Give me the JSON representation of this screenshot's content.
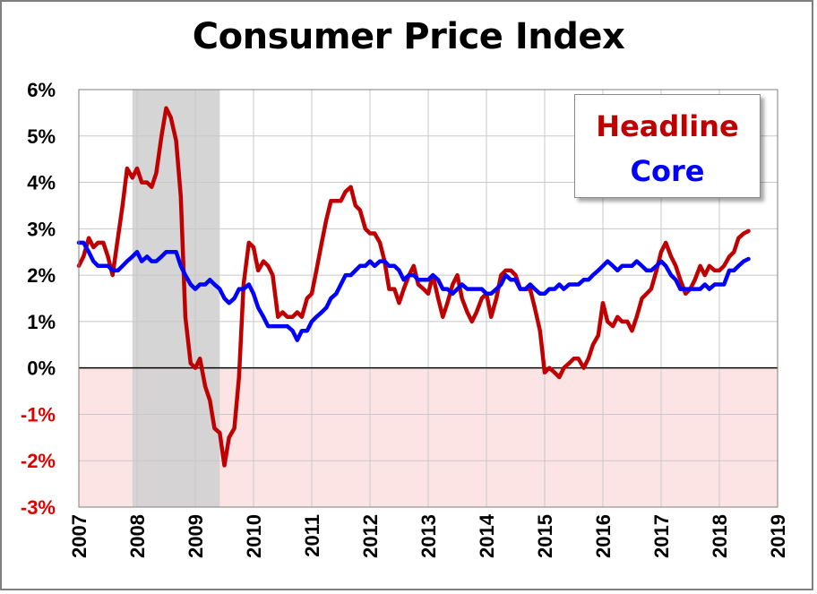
{
  "chart_data": {
    "type": "line",
    "title": "Consumer Price Index",
    "xlabel": "",
    "ylabel": "",
    "xlim": [
      2007,
      2019
    ],
    "ylim": [
      -3,
      6
    ],
    "x_ticks": [
      "2007",
      "2008",
      "2009",
      "2010",
      "2011",
      "2012",
      "2013",
      "2014",
      "2015",
      "2016",
      "2017",
      "2018",
      "2019"
    ],
    "y_ticks": [
      {
        "value": 6,
        "label": "6%"
      },
      {
        "value": 5,
        "label": "5%"
      },
      {
        "value": 4,
        "label": "4%"
      },
      {
        "value": 3,
        "label": "3%"
      },
      {
        "value": 2,
        "label": "2%"
      },
      {
        "value": 1,
        "label": "1%"
      },
      {
        "value": 0,
        "label": "0%"
      },
      {
        "value": -1,
        "label": "-1%"
      },
      {
        "value": -2,
        "label": "-2%"
      },
      {
        "value": -3,
        "label": "-3%"
      }
    ],
    "grid": true,
    "legend_position": "top-right",
    "recession": {
      "start": 2007.92,
      "end": 2009.42
    },
    "colors": {
      "headline": "#c00000",
      "core": "#0000ff",
      "recession": "#d0d0d0",
      "negative_zone": "#fde4e4",
      "negative_tick": "#e00000",
      "positive_tick": "#000000"
    },
    "series": [
      {
        "name": "Headline",
        "color": "#c00000",
        "points": [
          [
            2007.0,
            2.2
          ],
          [
            2007.08,
            2.4
          ],
          [
            2007.17,
            2.8
          ],
          [
            2007.25,
            2.6
          ],
          [
            2007.33,
            2.7
          ],
          [
            2007.42,
            2.7
          ],
          [
            2007.5,
            2.4
          ],
          [
            2007.58,
            2.0
          ],
          [
            2007.67,
            2.8
          ],
          [
            2007.75,
            3.5
          ],
          [
            2007.83,
            4.3
          ],
          [
            2007.92,
            4.1
          ],
          [
            2008.0,
            4.3
          ],
          [
            2008.08,
            4.0
          ],
          [
            2008.17,
            4.0
          ],
          [
            2008.25,
            3.9
          ],
          [
            2008.33,
            4.2
          ],
          [
            2008.42,
            5.0
          ],
          [
            2008.5,
            5.6
          ],
          [
            2008.58,
            5.4
          ],
          [
            2008.67,
            4.9
          ],
          [
            2008.75,
            3.7
          ],
          [
            2008.83,
            1.1
          ],
          [
            2008.92,
            0.1
          ],
          [
            2009.0,
            0.0
          ],
          [
            2009.08,
            0.2
          ],
          [
            2009.17,
            -0.4
          ],
          [
            2009.25,
            -0.7
          ],
          [
            2009.33,
            -1.3
          ],
          [
            2009.42,
            -1.4
          ],
          [
            2009.5,
            -2.1
          ],
          [
            2009.58,
            -1.5
          ],
          [
            2009.67,
            -1.3
          ],
          [
            2009.75,
            -0.2
          ],
          [
            2009.83,
            1.8
          ],
          [
            2009.92,
            2.7
          ],
          [
            2010.0,
            2.6
          ],
          [
            2010.08,
            2.1
          ],
          [
            2010.17,
            2.3
          ],
          [
            2010.25,
            2.2
          ],
          [
            2010.33,
            2.0
          ],
          [
            2010.42,
            1.1
          ],
          [
            2010.5,
            1.2
          ],
          [
            2010.58,
            1.1
          ],
          [
            2010.67,
            1.1
          ],
          [
            2010.75,
            1.2
          ],
          [
            2010.83,
            1.1
          ],
          [
            2010.92,
            1.5
          ],
          [
            2011.0,
            1.6
          ],
          [
            2011.08,
            2.1
          ],
          [
            2011.17,
            2.7
          ],
          [
            2011.25,
            3.2
          ],
          [
            2011.33,
            3.6
          ],
          [
            2011.42,
            3.6
          ],
          [
            2011.5,
            3.6
          ],
          [
            2011.58,
            3.8
          ],
          [
            2011.67,
            3.9
          ],
          [
            2011.75,
            3.5
          ],
          [
            2011.83,
            3.4
          ],
          [
            2011.92,
            3.0
          ],
          [
            2012.0,
            2.9
          ],
          [
            2012.08,
            2.9
          ],
          [
            2012.17,
            2.7
          ],
          [
            2012.25,
            2.3
          ],
          [
            2012.33,
            1.7
          ],
          [
            2012.42,
            1.7
          ],
          [
            2012.5,
            1.4
          ],
          [
            2012.58,
            1.7
          ],
          [
            2012.67,
            2.0
          ],
          [
            2012.75,
            2.2
          ],
          [
            2012.83,
            1.8
          ],
          [
            2012.92,
            1.7
          ],
          [
            2013.0,
            1.6
          ],
          [
            2013.08,
            2.0
          ],
          [
            2013.17,
            1.5
          ],
          [
            2013.25,
            1.1
          ],
          [
            2013.33,
            1.4
          ],
          [
            2013.42,
            1.8
          ],
          [
            2013.5,
            2.0
          ],
          [
            2013.58,
            1.5
          ],
          [
            2013.67,
            1.2
          ],
          [
            2013.75,
            1.0
          ],
          [
            2013.83,
            1.2
          ],
          [
            2013.92,
            1.5
          ],
          [
            2014.0,
            1.6
          ],
          [
            2014.08,
            1.1
          ],
          [
            2014.17,
            1.5
          ],
          [
            2014.25,
            2.0
          ],
          [
            2014.33,
            2.1
          ],
          [
            2014.42,
            2.1
          ],
          [
            2014.5,
            2.0
          ],
          [
            2014.58,
            1.7
          ],
          [
            2014.67,
            1.7
          ],
          [
            2014.75,
            1.7
          ],
          [
            2014.83,
            1.3
          ],
          [
            2014.92,
            0.8
          ],
          [
            2015.0,
            -0.1
          ],
          [
            2015.08,
            0.0
          ],
          [
            2015.17,
            -0.1
          ],
          [
            2015.25,
            -0.2
          ],
          [
            2015.33,
            0.0
          ],
          [
            2015.42,
            0.1
          ],
          [
            2015.5,
            0.2
          ],
          [
            2015.58,
            0.2
          ],
          [
            2015.67,
            0.0
          ],
          [
            2015.75,
            0.2
          ],
          [
            2015.83,
            0.5
          ],
          [
            2015.92,
            0.7
          ],
          [
            2016.0,
            1.4
          ],
          [
            2016.08,
            1.0
          ],
          [
            2016.17,
            0.9
          ],
          [
            2016.25,
            1.1
          ],
          [
            2016.33,
            1.0
          ],
          [
            2016.42,
            1.0
          ],
          [
            2016.5,
            0.8
          ],
          [
            2016.58,
            1.1
          ],
          [
            2016.67,
            1.5
          ],
          [
            2016.75,
            1.6
          ],
          [
            2016.83,
            1.7
          ],
          [
            2016.92,
            2.1
          ],
          [
            2017.0,
            2.5
          ],
          [
            2017.08,
            2.7
          ],
          [
            2017.17,
            2.4
          ],
          [
            2017.25,
            2.2
          ],
          [
            2017.33,
            1.9
          ],
          [
            2017.42,
            1.6
          ],
          [
            2017.5,
            1.7
          ],
          [
            2017.58,
            1.9
          ],
          [
            2017.67,
            2.2
          ],
          [
            2017.75,
            2.0
          ],
          [
            2017.83,
            2.2
          ],
          [
            2017.92,
            2.1
          ],
          [
            2018.0,
            2.1
          ],
          [
            2018.08,
            2.2
          ],
          [
            2018.17,
            2.4
          ],
          [
            2018.25,
            2.5
          ],
          [
            2018.33,
            2.8
          ],
          [
            2018.42,
            2.9
          ],
          [
            2018.5,
            2.95
          ]
        ]
      },
      {
        "name": "Core",
        "color": "#0000ff",
        "points": [
          [
            2007.0,
            2.7
          ],
          [
            2007.08,
            2.7
          ],
          [
            2007.17,
            2.5
          ],
          [
            2007.25,
            2.3
          ],
          [
            2007.33,
            2.2
          ],
          [
            2007.42,
            2.2
          ],
          [
            2007.5,
            2.2
          ],
          [
            2007.58,
            2.1
          ],
          [
            2007.67,
            2.1
          ],
          [
            2007.75,
            2.2
          ],
          [
            2007.83,
            2.3
          ],
          [
            2007.92,
            2.4
          ],
          [
            2008.0,
            2.5
          ],
          [
            2008.08,
            2.3
          ],
          [
            2008.17,
            2.4
          ],
          [
            2008.25,
            2.3
          ],
          [
            2008.33,
            2.3
          ],
          [
            2008.42,
            2.4
          ],
          [
            2008.5,
            2.5
          ],
          [
            2008.58,
            2.5
          ],
          [
            2008.67,
            2.5
          ],
          [
            2008.75,
            2.2
          ],
          [
            2008.83,
            2.0
          ],
          [
            2008.92,
            1.8
          ],
          [
            2009.0,
            1.7
          ],
          [
            2009.08,
            1.8
          ],
          [
            2009.17,
            1.8
          ],
          [
            2009.25,
            1.9
          ],
          [
            2009.33,
            1.8
          ],
          [
            2009.42,
            1.7
          ],
          [
            2009.5,
            1.5
          ],
          [
            2009.58,
            1.4
          ],
          [
            2009.67,
            1.5
          ],
          [
            2009.75,
            1.7
          ],
          [
            2009.83,
            1.7
          ],
          [
            2009.92,
            1.8
          ],
          [
            2010.0,
            1.6
          ],
          [
            2010.08,
            1.3
          ],
          [
            2010.17,
            1.1
          ],
          [
            2010.25,
            0.9
          ],
          [
            2010.33,
            0.9
          ],
          [
            2010.42,
            0.9
          ],
          [
            2010.5,
            0.9
          ],
          [
            2010.58,
            0.9
          ],
          [
            2010.67,
            0.8
          ],
          [
            2010.75,
            0.6
          ],
          [
            2010.83,
            0.8
          ],
          [
            2010.92,
            0.8
          ],
          [
            2011.0,
            1.0
          ],
          [
            2011.08,
            1.1
          ],
          [
            2011.17,
            1.2
          ],
          [
            2011.25,
            1.3
          ],
          [
            2011.33,
            1.5
          ],
          [
            2011.42,
            1.6
          ],
          [
            2011.5,
            1.8
          ],
          [
            2011.58,
            2.0
          ],
          [
            2011.67,
            2.0
          ],
          [
            2011.75,
            2.1
          ],
          [
            2011.83,
            2.2
          ],
          [
            2011.92,
            2.2
          ],
          [
            2012.0,
            2.3
          ],
          [
            2012.08,
            2.2
          ],
          [
            2012.17,
            2.3
          ],
          [
            2012.25,
            2.3
          ],
          [
            2012.33,
            2.2
          ],
          [
            2012.42,
            2.2
          ],
          [
            2012.5,
            2.1
          ],
          [
            2012.58,
            1.9
          ],
          [
            2012.67,
            2.0
          ],
          [
            2012.75,
            2.0
          ],
          [
            2012.83,
            1.9
          ],
          [
            2012.92,
            1.9
          ],
          [
            2013.0,
            1.9
          ],
          [
            2013.08,
            2.0
          ],
          [
            2013.17,
            1.9
          ],
          [
            2013.25,
            1.7
          ],
          [
            2013.33,
            1.7
          ],
          [
            2013.42,
            1.6
          ],
          [
            2013.5,
            1.7
          ],
          [
            2013.58,
            1.8
          ],
          [
            2013.67,
            1.7
          ],
          [
            2013.75,
            1.7
          ],
          [
            2013.83,
            1.7
          ],
          [
            2013.92,
            1.7
          ],
          [
            2014.0,
            1.6
          ],
          [
            2014.08,
            1.6
          ],
          [
            2014.17,
            1.7
          ],
          [
            2014.25,
            1.8
          ],
          [
            2014.33,
            2.0
          ],
          [
            2014.42,
            1.9
          ],
          [
            2014.5,
            1.9
          ],
          [
            2014.58,
            1.7
          ],
          [
            2014.67,
            1.7
          ],
          [
            2014.75,
            1.8
          ],
          [
            2014.83,
            1.7
          ],
          [
            2014.92,
            1.6
          ],
          [
            2015.0,
            1.6
          ],
          [
            2015.08,
            1.7
          ],
          [
            2015.17,
            1.7
          ],
          [
            2015.25,
            1.8
          ],
          [
            2015.33,
            1.7
          ],
          [
            2015.42,
            1.8
          ],
          [
            2015.5,
            1.8
          ],
          [
            2015.58,
            1.8
          ],
          [
            2015.67,
            1.9
          ],
          [
            2015.75,
            1.9
          ],
          [
            2015.83,
            2.0
          ],
          [
            2015.92,
            2.1
          ],
          [
            2016.0,
            2.2
          ],
          [
            2016.08,
            2.3
          ],
          [
            2016.17,
            2.2
          ],
          [
            2016.25,
            2.1
          ],
          [
            2016.33,
            2.2
          ],
          [
            2016.42,
            2.2
          ],
          [
            2016.5,
            2.2
          ],
          [
            2016.58,
            2.3
          ],
          [
            2016.67,
            2.2
          ],
          [
            2016.75,
            2.1
          ],
          [
            2016.83,
            2.1
          ],
          [
            2016.92,
            2.2
          ],
          [
            2017.0,
            2.3
          ],
          [
            2017.08,
            2.2
          ],
          [
            2017.17,
            2.0
          ],
          [
            2017.25,
            1.9
          ],
          [
            2017.33,
            1.7
          ],
          [
            2017.42,
            1.7
          ],
          [
            2017.5,
            1.7
          ],
          [
            2017.58,
            1.7
          ],
          [
            2017.67,
            1.7
          ],
          [
            2017.75,
            1.8
          ],
          [
            2017.83,
            1.7
          ],
          [
            2017.92,
            1.8
          ],
          [
            2018.0,
            1.8
          ],
          [
            2018.08,
            1.8
          ],
          [
            2018.17,
            2.1
          ],
          [
            2018.25,
            2.1
          ],
          [
            2018.33,
            2.2
          ],
          [
            2018.42,
            2.3
          ],
          [
            2018.5,
            2.35
          ]
        ]
      }
    ]
  }
}
